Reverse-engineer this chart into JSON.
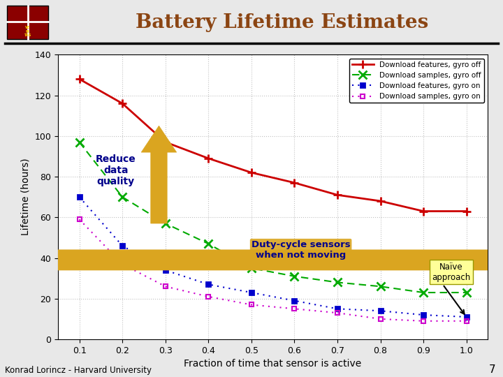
{
  "title": "Battery Lifetime Estimates",
  "xlabel": "Fraction of time that sensor is active",
  "ylabel": "Lifetime (hours)",
  "x": [
    0.1,
    0.2,
    0.3,
    0.4,
    0.5,
    0.6,
    0.7,
    0.8,
    0.9,
    1.0
  ],
  "series": [
    {
      "label": "Download features, gyro off",
      "y": [
        128,
        116,
        97,
        89,
        82,
        77,
        71,
        68,
        63,
        63
      ],
      "color": "#cc0000",
      "linestyle": "-",
      "marker": "+"
    },
    {
      "label": "Download samples, gyro off",
      "y": [
        97,
        70,
        57,
        47,
        35,
        31,
        28,
        26,
        23,
        23
      ],
      "color": "#00aa00",
      "linestyle": "--",
      "marker": "x"
    },
    {
      "label": "Download features, gyro on",
      "y": [
        70,
        46,
        34,
        27,
        23,
        19,
        15,
        14,
        12,
        11
      ],
      "color": "#0000cc",
      "linestyle": ":",
      "marker": "s"
    },
    {
      "label": "Download samples, gyro on",
      "y": [
        59,
        37,
        26,
        21,
        17,
        15,
        13,
        10,
        9,
        9
      ],
      "color": "#cc00cc",
      "linestyle": ":",
      "marker": "s"
    }
  ],
  "ylim": [
    0,
    140
  ],
  "yticks": [
    0,
    20,
    40,
    60,
    80,
    100,
    120,
    140
  ],
  "xlim": [
    0.05,
    1.05
  ],
  "xticks": [
    0.1,
    0.2,
    0.3,
    0.4,
    0.5,
    0.6,
    0.7,
    0.8,
    0.9,
    1.0
  ],
  "bg_color": "#e8e8e8",
  "plot_bg_color": "#ffffff",
  "grid_color": "#999999",
  "footer_text": "Konrad Lorincz - Harvard University",
  "slide_number": "7",
  "reduce_arrow_text": "Reduce\ndata\nquality",
  "duty_arrow_text": "Duty-cycle sensors\nwhen not moving",
  "naive_text": "Naïve\napproach",
  "title_color": "#8B4513",
  "arrow_color": "#DAA520",
  "annotation_text_color": "#00008B"
}
